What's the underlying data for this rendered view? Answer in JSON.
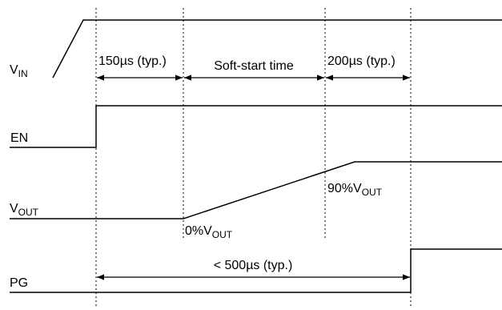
{
  "signals": {
    "vin": {
      "main": "V",
      "sub": "IN"
    },
    "en": {
      "label": "EN"
    },
    "vout": {
      "main": "V",
      "sub": "OUT"
    },
    "pg": {
      "label": "PG"
    }
  },
  "intervals": {
    "t1": "150µs (typ.)",
    "t2": "Soft-start time",
    "t3": "200µs (typ.)",
    "total": "< 500µs (typ.)"
  },
  "annotations": {
    "zero_prefix": "0%V",
    "zero_sub": "OUT",
    "ninety_prefix": "90%V",
    "ninety_sub": "OUT"
  }
}
